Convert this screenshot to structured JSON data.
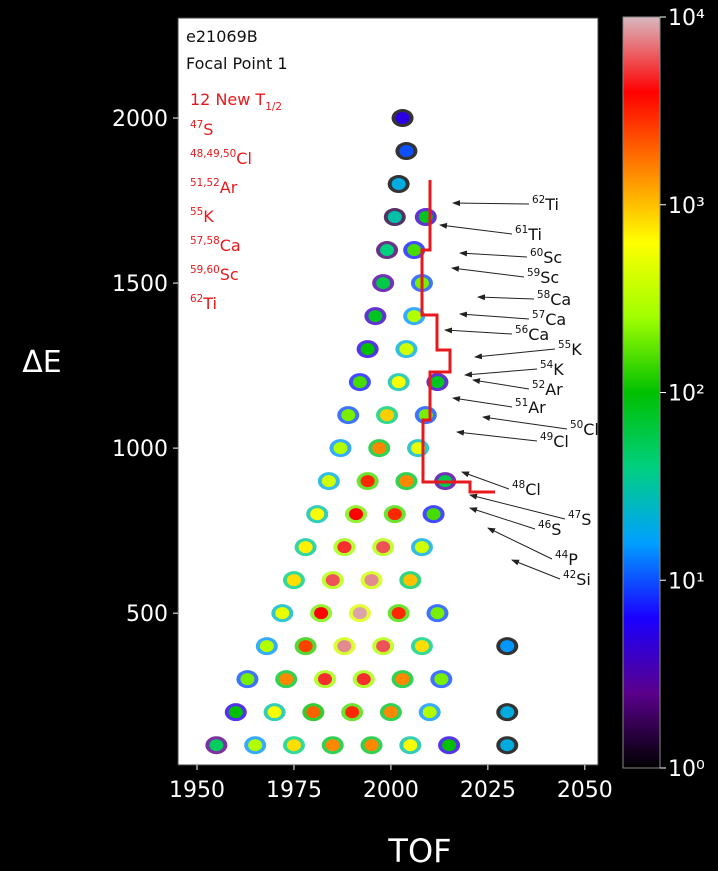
{
  "chart_data": {
    "type": "heatmap",
    "xlabel": "TOF",
    "ylabel": "ΔE",
    "xlim": [
      1945.1,
      2053.4
    ],
    "ylim": [
      40,
      2303
    ],
    "xticks": [
      1950,
      1975,
      2000,
      2025,
      2050
    ],
    "yticks": [
      500,
      1000,
      1500,
      2000
    ],
    "colorbar": {
      "log_scale": true,
      "zlim": [
        1,
        10000
      ],
      "ticks": [
        {
          "value": 1,
          "label": "10⁰"
        },
        {
          "value": 10,
          "label": "10¹"
        },
        {
          "value": 100,
          "label": "10²"
        },
        {
          "value": 1000,
          "label": "10³"
        },
        {
          "value": 10000,
          "label": "10⁴"
        }
      ],
      "colorscale": [
        "#000000",
        "#5a008c",
        "#1a00ff",
        "#00a0ff",
        "#00d080",
        "#00c000",
        "#a0ff00",
        "#ffff00",
        "#ff8000",
        "#ff0000",
        "#d8b8c0"
      ]
    },
    "x": [
      1955,
      1965,
      1975,
      1985,
      1995,
      2005,
      2015,
      2030,
      1960,
      1970,
      1980,
      1990,
      2000,
      2010,
      2030,
      1963,
      1973,
      1983,
      1993,
      2003,
      2013,
      1968,
      1978,
      1988,
      1998,
      2008,
      2030,
      1972,
      1982,
      1992,
      2002,
      2012,
      1975,
      1985,
      1995,
      2005,
      1978,
      1988,
      1998,
      2008,
      1981,
      1991,
      2001,
      2011,
      1984,
      1994,
      2004,
      2014,
      1987,
      1997,
      2007,
      1989,
      1999,
      2009,
      1992,
      2002,
      2012,
      1994,
      2004,
      1996,
      2006,
      1998,
      2008,
      1999,
      2006,
      2001,
      2009,
      2002,
      2004,
      2003
    ],
    "values": [
      100,
      100,
      100,
      100,
      100,
      100,
      100,
      100,
      200,
      200,
      200,
      200,
      200,
      200,
      200,
      300,
      300,
      300,
      300,
      300,
      300,
      400,
      400,
      400,
      400,
      400,
      400,
      500,
      500,
      500,
      500,
      500,
      600,
      600,
      600,
      600,
      700,
      700,
      700,
      700,
      800,
      800,
      800,
      800,
      900,
      900,
      900,
      900,
      1000,
      1000,
      1000,
      1100,
      1100,
      1100,
      1200,
      1200,
      1200,
      1300,
      1300,
      1400,
      1400,
      1500,
      1500,
      1600,
      1600,
      1700,
      1700,
      1800,
      1900,
      2000
    ],
    "counts": [
      50,
      300,
      800,
      1500,
      1500,
      600,
      100,
      20,
      100,
      600,
      2000,
      3000,
      1500,
      300,
      20,
      200,
      1500,
      5000,
      5000,
      1500,
      200,
      300,
      2500,
      8000,
      6000,
      800,
      15,
      500,
      4000,
      9000,
      3000,
      200,
      800,
      6000,
      8000,
      1000,
      700,
      5000,
      6000,
      400,
      600,
      4000,
      3000,
      150,
      400,
      3000,
      1500,
      60,
      300,
      1500,
      500,
      200,
      900,
      200,
      150,
      600,
      80,
      100,
      400,
      80,
      300,
      60,
      200,
      40,
      150,
      30,
      80,
      20,
      10,
      5
    ],
    "info": [
      "e21069B",
      "Focal Point 1"
    ],
    "new_halflives": {
      "color": "#e8191c",
      "title": {
        "text": "12 New T",
        "sub": "1/2"
      },
      "items": [
        {
          "sup": "47",
          "text": "S"
        },
        {
          "sup": "48,49,50",
          "text": "Cl"
        },
        {
          "sup": "51,52",
          "text": "Ar"
        },
        {
          "sup": "55",
          "text": "K"
        },
        {
          "sup": "57,58",
          "text": "Ca"
        },
        {
          "sup": "59,60",
          "text": "Sc"
        },
        {
          "sup": "62",
          "text": "Ti"
        }
      ]
    },
    "isotope_labels": [
      {
        "sup": "62",
        "text": "Ti"
      },
      {
        "sup": "61",
        "text": "Ti"
      },
      {
        "sup": "60",
        "text": "Sc"
      },
      {
        "sup": "59",
        "text": "Sc"
      },
      {
        "sup": "58",
        "text": "Ca"
      },
      {
        "sup": "57",
        "text": "Ca"
      },
      {
        "sup": "56",
        "text": "Ca"
      },
      {
        "sup": "55",
        "text": "K"
      },
      {
        "sup": "54",
        "text": "K"
      },
      {
        "sup": "52",
        "text": "Ar"
      },
      {
        "sup": "51",
        "text": "Ar"
      },
      {
        "sup": "50",
        "text": "Cl"
      },
      {
        "sup": "49",
        "text": "Cl"
      },
      {
        "sup": "48",
        "text": "Cl"
      },
      {
        "sup": "47",
        "text": "S"
      },
      {
        "sup": "46",
        "text": "S"
      },
      {
        "sup": "44",
        "text": "P"
      },
      {
        "sup": "42",
        "text": "Si"
      }
    ]
  }
}
